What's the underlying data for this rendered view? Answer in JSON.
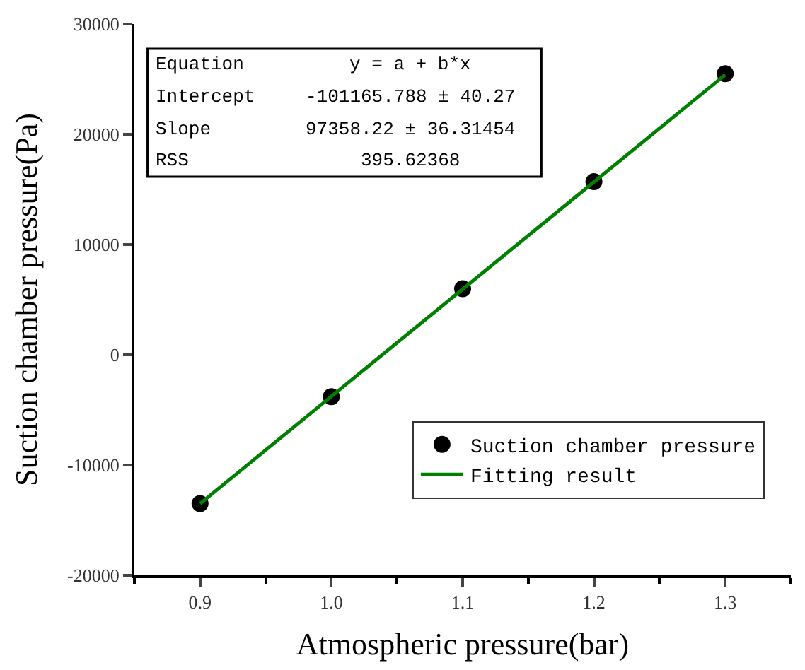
{
  "chart_data": {
    "type": "scatter",
    "xlabel": "Atmospheric pressure(bar)",
    "ylabel": "Suction chamber pressure(Pa)",
    "xlim": [
      0.85,
      1.35
    ],
    "xticks": [
      {
        "value": 0.9,
        "label": "0.9"
      },
      {
        "value": 1.0,
        "label": "1.0"
      },
      {
        "value": 1.1,
        "label": "1.1"
      },
      {
        "value": 1.2,
        "label": "1.2"
      },
      {
        "value": 1.3,
        "label": "1.3"
      }
    ],
    "ylim": [
      -20000,
      30000
    ],
    "yticks": [
      -20000,
      -10000,
      0,
      10000,
      20000,
      30000
    ],
    "legend": "bottom right",
    "series": [
      {
        "name": "Suction chamber pressure",
        "marker": "circle",
        "color": "#000000",
        "x": [
          0.9,
          1.0,
          1.1,
          1.2,
          1.3
        ],
        "values": [
          -13500,
          -3800,
          6000,
          15700,
          25500
        ]
      },
      {
        "name": "Fitting result",
        "type": "line",
        "marker": "none",
        "line_style": "solid",
        "color": "#008000",
        "x": [
          0.9,
          1.3
        ],
        "values": [
          -13500,
          25400
        ]
      }
    ],
    "annotations": [
      "Equation",
      "y = a + b*x",
      "Intercept",
      "-101165.788 ± 40.27",
      "Slope",
      "97358.22 ± 36.31454",
      "RSS",
      "395.62368"
    ]
  }
}
